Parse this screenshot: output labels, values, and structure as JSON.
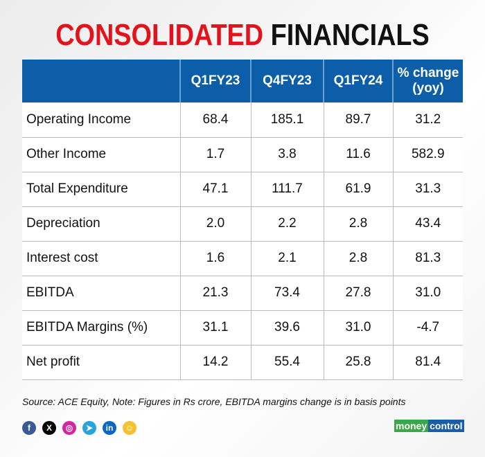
{
  "title": {
    "part1": "CONSOLIDATED",
    "part2": "FINANCIALS"
  },
  "table": {
    "headers": [
      "",
      "Q1FY23",
      "Q4FY23",
      "Q1FY24",
      "% change (yoy)"
    ],
    "rows": [
      [
        "Operating Income",
        "68.4",
        "185.1",
        "89.7",
        "31.2"
      ],
      [
        "Other Income",
        "1.7",
        "3.8",
        "11.6",
        "582.9"
      ],
      [
        "Total Expenditure",
        "47.1",
        "111.7",
        "61.9",
        "31.3"
      ],
      [
        "Depreciation",
        "2.0",
        "2.2",
        "2.8",
        "43.4"
      ],
      [
        "Interest cost",
        "1.6",
        "2.1",
        "2.8",
        "81.3"
      ],
      [
        "EBITDA",
        "21.3",
        "73.4",
        "27.8",
        "31.0"
      ],
      [
        "EBITDA Margins (%)",
        "31.1",
        "39.6",
        "31.0",
        "-4.7"
      ],
      [
        "Net profit",
        "14.2",
        "55.4",
        "25.8",
        "81.4"
      ]
    ]
  },
  "note": "Source: ACE Equity, Note: Figures in Rs crore, EBITDA margins change is in basis points",
  "social": [
    {
      "icon": "facebook-icon",
      "glyph": "f",
      "color": "#3b5998"
    },
    {
      "icon": "x-icon",
      "glyph": "X",
      "color": "#000000"
    },
    {
      "icon": "instagram-icon",
      "glyph": "◎",
      "color": "#d6249f"
    },
    {
      "icon": "telegram-icon",
      "glyph": "➤",
      "color": "#2aa3dd"
    },
    {
      "icon": "linkedin-icon",
      "glyph": "in",
      "color": "#0a66c2"
    },
    {
      "icon": "snapchat-icon",
      "glyph": "☺",
      "color": "#f2c230"
    }
  ],
  "logo": {
    "part1": "money",
    "part2": "control"
  }
}
